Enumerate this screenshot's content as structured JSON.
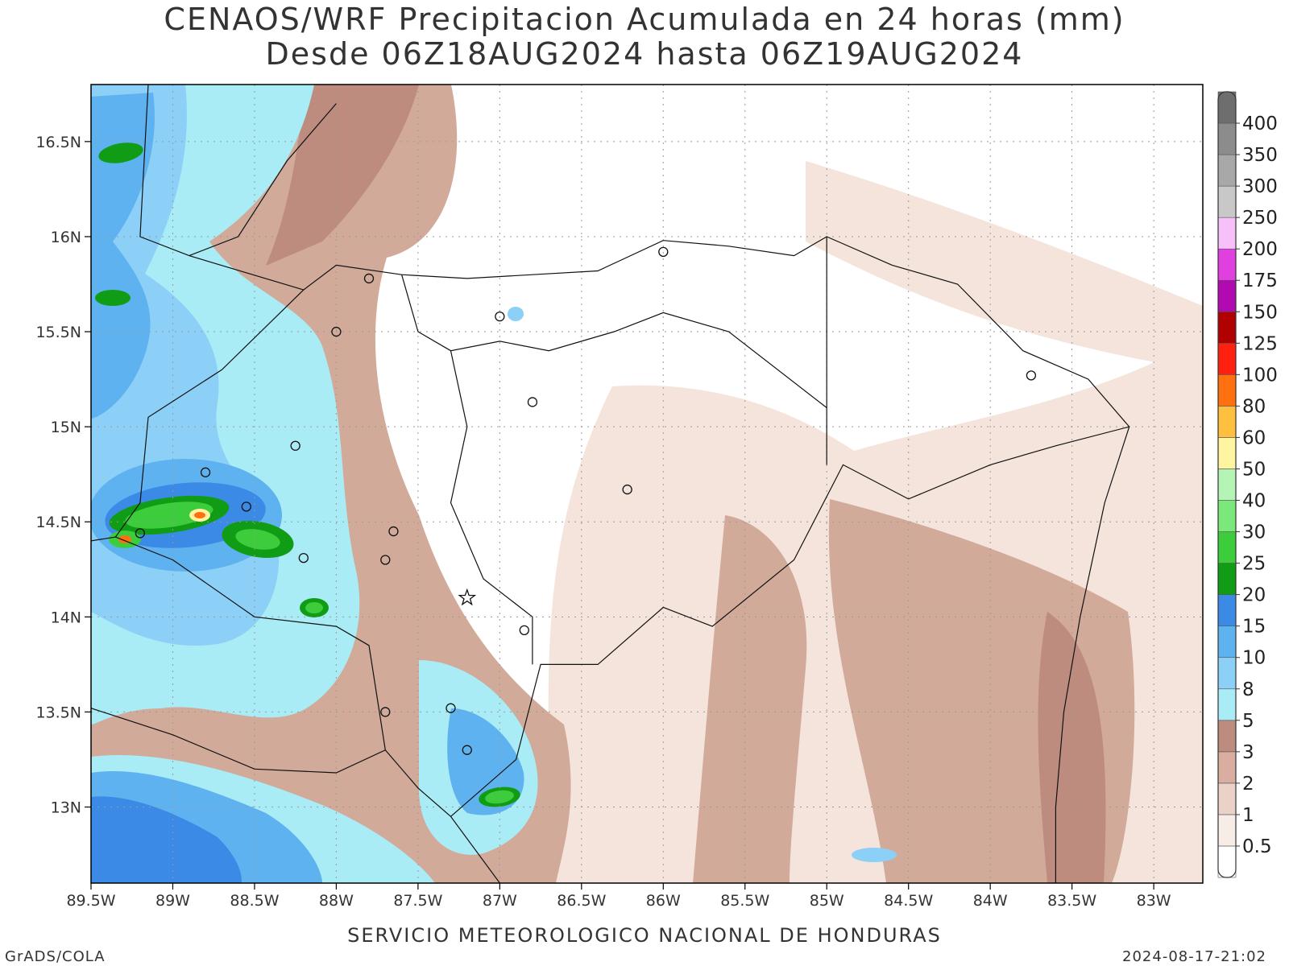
{
  "title": {
    "line1": "CENAOS/WRF Precipitacion Acumulada en 24 horas (mm)",
    "line2": "Desde 06Z18AUG2024 hasta 06Z19AUG2024"
  },
  "footer": {
    "organization": "SERVICIO METEOROLOGICO NACIONAL DE HONDURAS",
    "software": "GrADS/COLA",
    "generated": "2024-08-17-21:02"
  },
  "map": {
    "lon_range": [
      -89.5,
      -82.7
    ],
    "lat_range": [
      12.6,
      16.8
    ],
    "lon_ticks": [
      {
        "value": -89.5,
        "label": "89.5W"
      },
      {
        "value": -89,
        "label": "89W"
      },
      {
        "value": -88.5,
        "label": "88.5W"
      },
      {
        "value": -88,
        "label": "88W"
      },
      {
        "value": -87.5,
        "label": "87.5W"
      },
      {
        "value": -87,
        "label": "87W"
      },
      {
        "value": -86.5,
        "label": "86.5W"
      },
      {
        "value": -86,
        "label": "86W"
      },
      {
        "value": -85.5,
        "label": "85.5W"
      },
      {
        "value": -85,
        "label": "85W"
      },
      {
        "value": -84.5,
        "label": "84.5W"
      },
      {
        "value": -84,
        "label": "84W"
      },
      {
        "value": -83.5,
        "label": "83.5W"
      },
      {
        "value": -83,
        "label": "83W"
      }
    ],
    "lat_ticks": [
      {
        "value": 16.5,
        "label": "16.5N"
      },
      {
        "value": 16,
        "label": "16N"
      },
      {
        "value": 15.5,
        "label": "15.5N"
      },
      {
        "value": 15,
        "label": "15N"
      },
      {
        "value": 14.5,
        "label": "14.5N"
      },
      {
        "value": 14,
        "label": "14N"
      },
      {
        "value": 13.5,
        "label": "13.5N"
      },
      {
        "value": 13,
        "label": "13N"
      }
    ],
    "grid": "dotted"
  },
  "colorbar": {
    "labels": [
      "0.5",
      "1",
      "2",
      "3",
      "5",
      "8",
      "10",
      "15",
      "20",
      "25",
      "30",
      "40",
      "50",
      "60",
      "80",
      "100",
      "125",
      "150",
      "175",
      "200",
      "250",
      "300",
      "350",
      "400"
    ],
    "colors": [
      "#ffffff",
      "#f7ece6",
      "#ebd2c8",
      "#d9aea0",
      "#bd8c7f",
      "#a9ecf5",
      "#8dd0f7",
      "#5fb2f0",
      "#3a8ae6",
      "#109c14",
      "#3ccc3c",
      "#7ae87a",
      "#b4f4b4",
      "#fff4a0",
      "#ffc040",
      "#ff7010",
      "#ff2010",
      "#b00000",
      "#b00ab0",
      "#e040e0",
      "#f8c0f8",
      "#c8c8c8",
      "#a8a8a8",
      "#8c8c8c",
      "#6e6e6e"
    ]
  },
  "palette": {
    "light_pink": "#f4e4dc",
    "mid_brown": "#d2aa9a",
    "dark_brown": "#bd8c7f",
    "light_cyan": "#a9ecf5",
    "light_blue": "#8dd0f7",
    "mid_blue": "#5fb2f0",
    "deep_blue": "#3a8ae6",
    "dark_green": "#109c14",
    "green": "#3ccc3c",
    "yellow": "#fff4a0",
    "orange": "#ff7010"
  }
}
